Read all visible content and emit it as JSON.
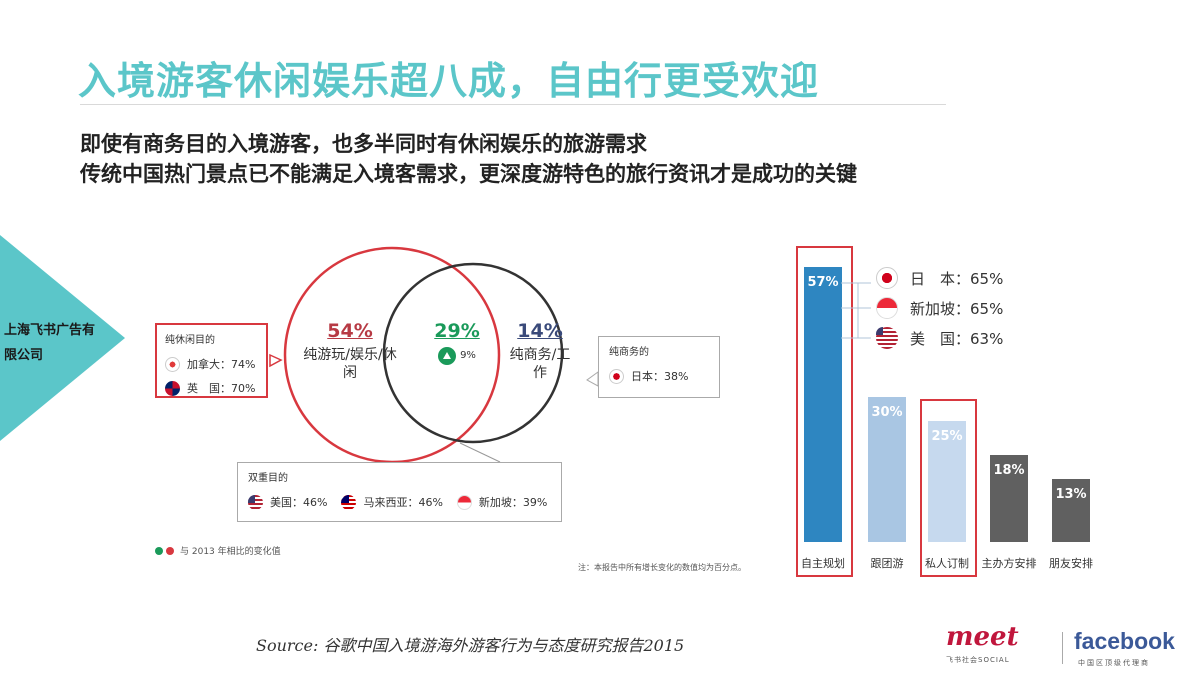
{
  "title": "入境游客休闲娱乐超八成，自由行更受欢迎",
  "subtitle_line1": "即使有商务目的入境游客，也多半同时有休闲娱乐的旅游需求",
  "subtitle_line2": "传统中国热门景点已不能满足入境客需求，更深度游特色的旅行资讯才是成功的关键",
  "company_label": "上海飞书广告有限公司",
  "chart_data": [
    {
      "type": "venn",
      "sets": [
        {
          "label": "纯游玩/娱乐/休闲",
          "value_pct": 54,
          "color": "#d8383f"
        },
        {
          "label": "纯商务/工作",
          "value_pct": 14,
          "color": "#333333"
        }
      ],
      "overlap": {
        "value_pct": 29,
        "change_pct": 9,
        "change_direction": "up"
      },
      "callouts": {
        "leisure_only": {
          "title": "纯休闲目的",
          "items": [
            {
              "country": "加拿大",
              "label": "加拿大：74%",
              "flag": "canada-flag-icon"
            },
            {
              "country": "英国",
              "label": "英　国：70%",
              "flag": "uk-flag-icon"
            }
          ]
        },
        "business_only": {
          "title": "纯商务的",
          "items": [
            {
              "country": "日本",
              "label": "日本：38%",
              "flag": "japan-flag-icon"
            }
          ]
        },
        "dual": {
          "title": "双重目的",
          "items": [
            {
              "country": "美国",
              "label": "美国：46%",
              "flag": "us-flag-icon"
            },
            {
              "country": "马来西亚",
              "label": "马来西亚：46%",
              "flag": "malaysia-flag-icon"
            },
            {
              "country": "新加坡",
              "label": "新加坡：39%",
              "flag": "singapore-flag-icon"
            }
          ]
        }
      },
      "legend_note": "与 2013 年相比的变化值",
      "footnote": "注：本报告中所有增长变化的数值均为百分点。"
    },
    {
      "type": "bar",
      "categories": [
        "自主规划",
        "跟团游",
        "私人订制",
        "主办方安排",
        "朋友安排"
      ],
      "values": [
        57,
        30,
        25,
        18,
        13
      ],
      "value_labels": [
        "57%",
        "30%",
        "25%",
        "18%",
        "13%"
      ],
      "ylim": [
        0,
        60
      ],
      "colors": [
        "#2e86c1",
        "#a9c6e3",
        "#c6d9ee",
        "#606060",
        "#606060"
      ],
      "highlighted": [
        "自主规划",
        "私人订制"
      ],
      "annotation": {
        "items": [
          {
            "label": "日　本：65%",
            "flag": "japan-flag-icon"
          },
          {
            "label": "新加坡：65%",
            "flag": "singapore-flag-icon"
          },
          {
            "label": "美　国：63%",
            "flag": "us-flag-icon"
          }
        ]
      }
    }
  ],
  "source": "Source: 谷歌中国入境游海外游客行为与态度研究报告2015",
  "logos": {
    "meet": "meet",
    "meet_sub": "飞书社会SOCIAL",
    "facebook": "facebook",
    "facebook_sub": "中国区顶级代理商"
  },
  "colors": {
    "accent": "#5bc6c9",
    "red": "#d8383f",
    "up_green": "#1a9a5a"
  }
}
